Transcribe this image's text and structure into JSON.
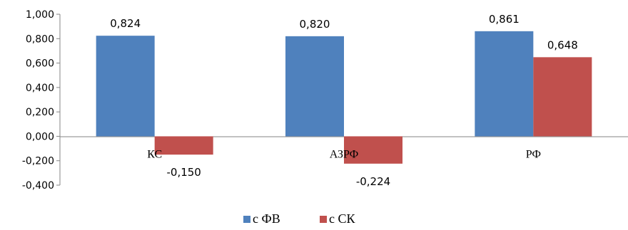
{
  "chart_data": {
    "type": "bar",
    "categories": [
      "КС",
      "АЗРФ",
      "РФ"
    ],
    "series": [
      {
        "name": "с ФВ",
        "values": [
          0.824,
          0.82,
          0.861
        ],
        "labels": [
          "0,824",
          "0,820",
          "0,861"
        ],
        "color": "#4F81BD"
      },
      {
        "name": "с СК",
        "values": [
          -0.15,
          -0.224,
          0.648
        ],
        "labels": [
          "-0,150",
          "-0,224",
          "0,648"
        ],
        "color": "#C0504D"
      }
    ],
    "ylim": [
      -0.4,
      1.0
    ],
    "ytick_values": [
      1.0,
      0.8,
      0.6,
      0.4,
      0.2,
      0.0,
      -0.2,
      -0.4
    ],
    "yticks": [
      "1,000",
      "0,800",
      "0,600",
      "0,400",
      "0,200",
      "0,000",
      "-0,200",
      "-0,400"
    ],
    "grid": false,
    "legend_position": "bottom-center",
    "title": "",
    "xlabel": "",
    "ylabel": ""
  }
}
